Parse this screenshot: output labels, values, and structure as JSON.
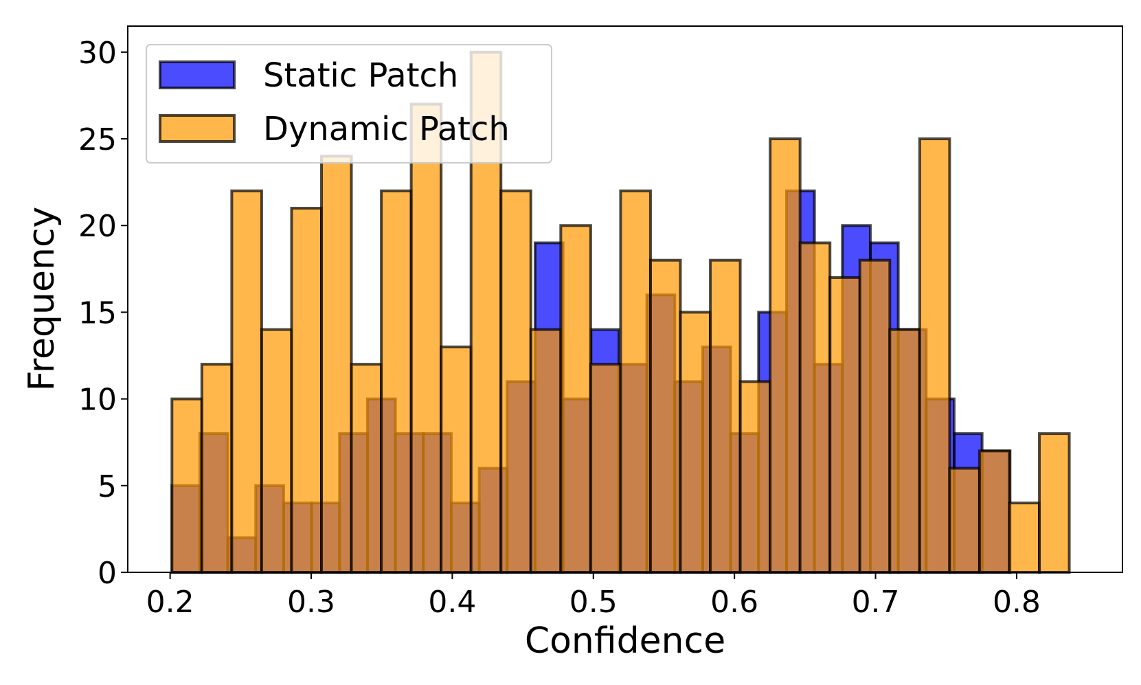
{
  "chart_data": {
    "type": "bar",
    "title": "",
    "xlabel": "Confidence",
    "ylabel": "Frequency",
    "xlim": [
      0.17,
      0.875
    ],
    "ylim": [
      0,
      31.5
    ],
    "xticks": [
      "0.2",
      "0.3",
      "0.4",
      "0.5",
      "0.6",
      "0.7",
      "0.8"
    ],
    "xtick_values": [
      0.2,
      0.3,
      0.4,
      0.5,
      0.6,
      0.7,
      0.8
    ],
    "yticks": [
      "0",
      "5",
      "10",
      "15",
      "20",
      "25",
      "30"
    ],
    "ytick_values": [
      0,
      5,
      10,
      15,
      20,
      25,
      30
    ],
    "legend_position": "top-left",
    "series": [
      {
        "name": "Static Patch",
        "color": "#0000ff",
        "opacity": 0.7,
        "bin_start": 0.2013,
        "bin_width": 0.0198,
        "values": [
          5,
          8,
          2,
          5,
          4,
          4,
          8,
          10,
          8,
          8,
          4,
          6,
          11,
          19,
          10,
          14,
          12,
          16,
          11,
          13,
          8,
          15,
          22,
          12,
          20,
          19,
          14,
          10,
          8,
          7
        ]
      },
      {
        "name": "Dynamic Patch",
        "color": "#ff9900",
        "opacity": 0.7,
        "bin_start": 0.2013,
        "bin_width": 0.0212,
        "values": [
          10,
          12,
          22,
          14,
          21,
          24,
          12,
          22,
          27,
          13,
          30,
          22,
          14,
          20,
          12,
          22,
          18,
          15,
          18,
          11,
          25,
          19,
          17,
          18,
          14,
          25,
          6,
          7,
          4,
          8
        ]
      }
    ]
  }
}
